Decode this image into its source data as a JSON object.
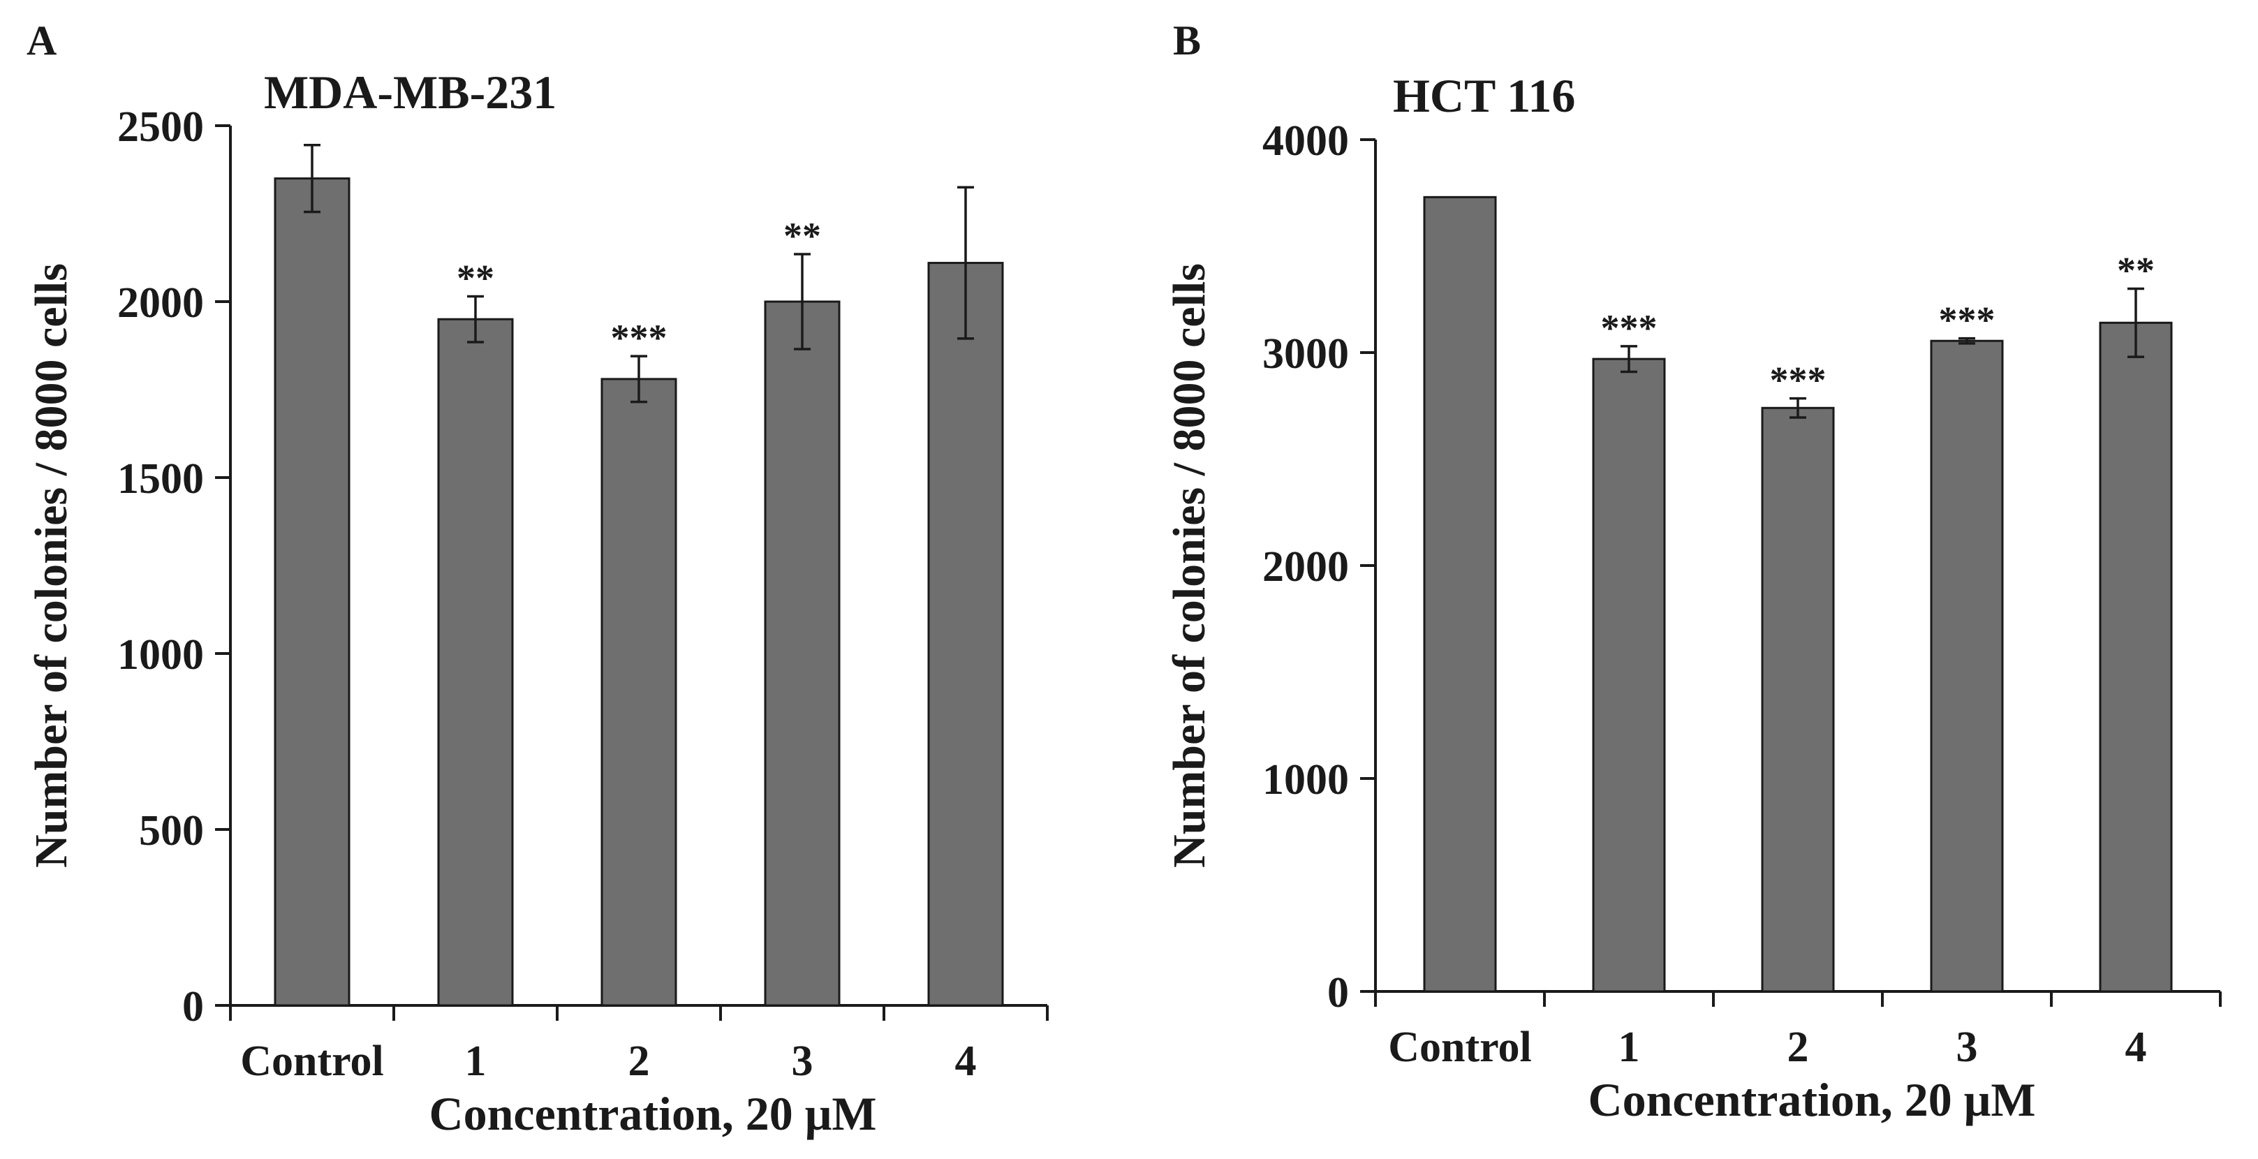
{
  "colors": {
    "bar": "#6f6f6f",
    "axis": "#1a1a1a",
    "background": "#ffffff"
  },
  "chart_data": [
    {
      "type": "bar",
      "panel": "A",
      "title": "MDA-MB-231",
      "xlabel": "Concentration, 20 μM",
      "ylabel": "Number of colonies / 8000 cells",
      "ylim": [
        0,
        2500
      ],
      "yticks": [
        "0",
        "500",
        "1000",
        "1500",
        "2000",
        "2500"
      ],
      "categories": [
        "Control",
        "1",
        "2",
        "3",
        "4"
      ],
      "values": [
        2350,
        1950,
        1780,
        2000,
        2110
      ],
      "errors": [
        95,
        65,
        65,
        135,
        215
      ],
      "significance": [
        "",
        "**",
        "***",
        "**",
        ""
      ]
    },
    {
      "type": "bar",
      "panel": "B",
      "title": "HCT 116",
      "xlabel": "Concentration, 20 μM",
      "ylabel": "Number of colonies / 8000 cells",
      "ylim": [
        0,
        4000
      ],
      "yticks": [
        "0",
        "1000",
        "2000",
        "3000",
        "4000"
      ],
      "categories": [
        "Control",
        "1",
        "2",
        "3",
        "4"
      ],
      "values": [
        3730,
        2970,
        2740,
        3055,
        3140
      ],
      "errors": [
        0,
        60,
        45,
        12,
        160
      ],
      "significance": [
        "",
        "***",
        "***",
        "***",
        "**"
      ]
    }
  ]
}
